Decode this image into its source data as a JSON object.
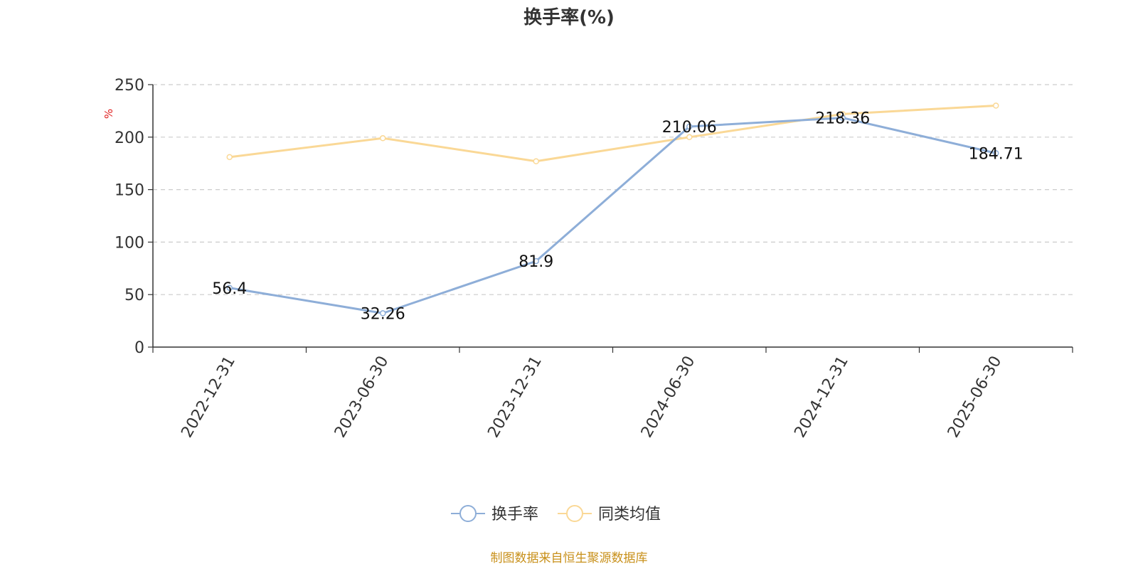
{
  "chart_data": {
    "type": "line",
    "title": "换手率(%)",
    "ylabel": "%",
    "xlabel": "",
    "categories": [
      "2022-12-31",
      "2023-06-30",
      "2023-12-31",
      "2024-06-30",
      "2024-12-31",
      "2025-06-30"
    ],
    "ylim": [
      0,
      250
    ],
    "yticks": [
      0,
      50,
      100,
      150,
      200,
      250
    ],
    "grid": true,
    "legend_position": "bottom-center",
    "series": [
      {
        "name": "换手率",
        "values": [
          56.4,
          32.26,
          81.9,
          210.06,
          218.36,
          184.71
        ],
        "color": "#8eaed8",
        "labels_shown": true
      },
      {
        "name": "同类均值",
        "values": [
          181,
          199,
          177,
          200,
          222,
          230
        ],
        "color": "#fad896",
        "labels_shown": false
      }
    ],
    "source": "制图数据来自恒生聚源数据库"
  }
}
